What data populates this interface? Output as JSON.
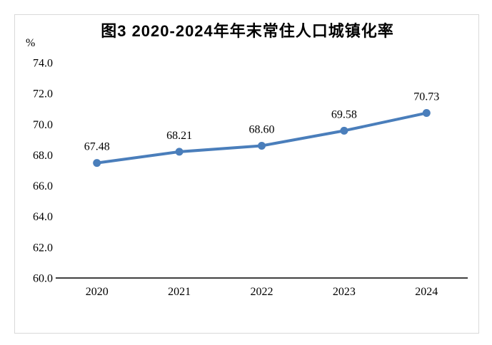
{
  "page": {
    "background_color": "#ffffff",
    "frame_border_color": "#d9d9d9"
  },
  "chart_data": {
    "type": "line",
    "title": "图3 2020-2024年年末常住人口城镇化率",
    "ylabel": "%",
    "xlabel": "",
    "categories": [
      "2020",
      "2021",
      "2022",
      "2023",
      "2024"
    ],
    "values": [
      67.48,
      68.21,
      68.6,
      69.58,
      70.73
    ],
    "value_labels": [
      "67.48",
      "68.21",
      "68.60",
      "69.58",
      "70.73"
    ],
    "ylim": [
      60.0,
      74.0
    ],
    "y_tick_step": 2.0,
    "y_tick_labels": [
      "60.0",
      "62.0",
      "64.0",
      "66.0",
      "68.0",
      "70.0",
      "72.0",
      "74.0"
    ],
    "grid": false,
    "legend": "none",
    "line_color": "#4a7ebb",
    "marker": "circle",
    "axis_color": "#000000"
  }
}
